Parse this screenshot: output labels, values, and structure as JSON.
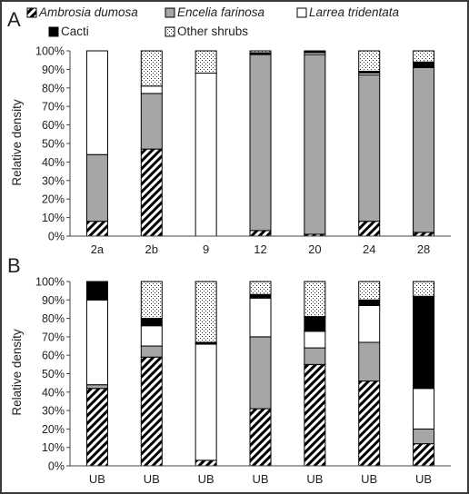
{
  "legend": {
    "items": [
      {
        "label": "Ambrosia dumosa",
        "pattern": "hatch",
        "italic": true
      },
      {
        "label": "Encelia farinosa",
        "pattern": "gray",
        "italic": true
      },
      {
        "label": "Larrea tridentata",
        "pattern": "white",
        "italic": true
      },
      {
        "label": "Cacti",
        "pattern": "black",
        "italic": false
      },
      {
        "label": "Other shrubs",
        "pattern": "dots",
        "italic": false
      }
    ]
  },
  "colors": {
    "gray": "#a6a6a6",
    "black": "#000000",
    "white": "#ffffff",
    "frame": "#3a3a3a"
  },
  "chart_data": [
    {
      "type": "bar",
      "stacked": true,
      "panel_label": "A",
      "ylabel": "Relative density",
      "ylim": [
        0,
        100
      ],
      "yticks": [
        "0%",
        "10%",
        "20%",
        "30%",
        "40%",
        "50%",
        "60%",
        "70%",
        "80%",
        "90%",
        "100%"
      ],
      "categories": [
        "2a",
        "2b",
        "9",
        "12",
        "20",
        "24",
        "28"
      ],
      "series": [
        {
          "name": "Ambrosia dumosa",
          "pattern": "hatch",
          "values": [
            8,
            47,
            0,
            3,
            1,
            8,
            2
          ]
        },
        {
          "name": "Encelia farinosa",
          "pattern": "gray",
          "values": [
            36,
            30,
            0,
            95,
            97,
            79,
            89
          ]
        },
        {
          "name": "Larrea tridentata",
          "pattern": "white",
          "values": [
            56,
            4,
            88,
            0,
            1,
            1,
            0
          ]
        },
        {
          "name": "Cacti",
          "pattern": "black",
          "values": [
            0,
            0,
            0,
            1,
            1,
            1,
            3
          ]
        },
        {
          "name": "Other shrubs",
          "pattern": "dots",
          "values": [
            0,
            19,
            12,
            1,
            0,
            11,
            6
          ]
        }
      ]
    },
    {
      "type": "bar",
      "stacked": true,
      "panel_label": "B",
      "ylabel": "Relative density",
      "ylim": [
        0,
        100
      ],
      "yticks": [
        "0%",
        "10%",
        "20%",
        "30%",
        "40%",
        "50%",
        "60%",
        "70%",
        "80%",
        "90%",
        "100%"
      ],
      "categories": [
        "UB",
        "UB",
        "UB",
        "UB",
        "UB",
        "UB",
        "UB"
      ],
      "series": [
        {
          "name": "Ambrosia dumosa",
          "pattern": "hatch",
          "values": [
            42,
            59,
            3,
            31,
            55,
            46,
            12
          ]
        },
        {
          "name": "Encelia farinosa",
          "pattern": "gray",
          "values": [
            2,
            6,
            0,
            39,
            9,
            21,
            8
          ]
        },
        {
          "name": "Larrea tridentata",
          "pattern": "white",
          "values": [
            46,
            11,
            63,
            21,
            9,
            20,
            22
          ]
        },
        {
          "name": "Cacti",
          "pattern": "black",
          "values": [
            10,
            4,
            1,
            2,
            8,
            3,
            50
          ]
        },
        {
          "name": "Other shrubs",
          "pattern": "dots",
          "values": [
            0,
            20,
            33,
            7,
            19,
            10,
            8
          ]
        }
      ]
    }
  ]
}
